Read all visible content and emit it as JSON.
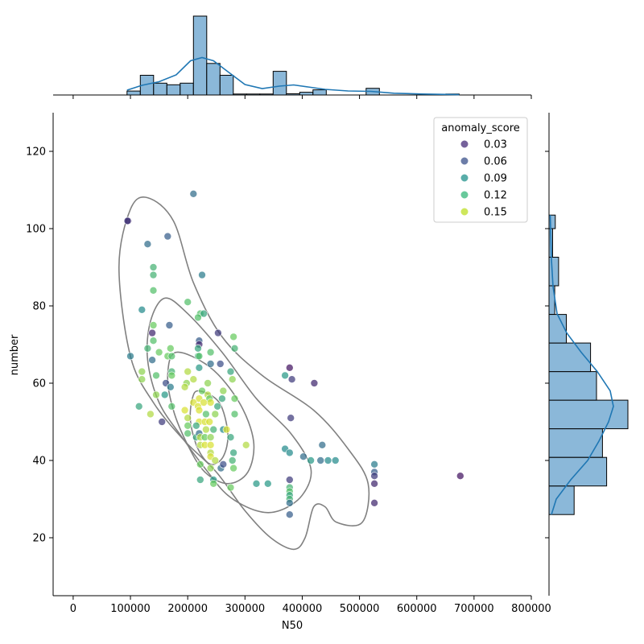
{
  "chart_data": {
    "type": "scatter",
    "subtype": "jointplot",
    "xlabel": "N50",
    "ylabel": "number",
    "xlim": [
      -35000,
      800000
    ],
    "ylim": [
      5,
      130
    ],
    "x_ticks": [
      0,
      100000,
      200000,
      300000,
      400000,
      500000,
      600000,
      700000,
      800000
    ],
    "x_tick_labels": [
      "0",
      "100000",
      "200000",
      "300000",
      "400000",
      "500000",
      "600000",
      "700000",
      "800000"
    ],
    "y_ticks": [
      20,
      40,
      60,
      80,
      100,
      120
    ],
    "y_tick_labels": [
      "20",
      "40",
      "60",
      "80",
      "100",
      "120"
    ],
    "grid": false,
    "legend": {
      "title": "anomaly_score",
      "placement": "top-right",
      "entries": [
        {
          "label": "0.03",
          "color": "#472c7a"
        },
        {
          "label": "0.06",
          "color": "#3b528b"
        },
        {
          "label": "0.09",
          "color": "#21918c"
        },
        {
          "label": "0.12",
          "color": "#35b779"
        },
        {
          "label": "0.15",
          "color": "#bddf26"
        }
      ]
    },
    "colormap": "viridis",
    "color_range": [
      0.0,
      0.17
    ],
    "kde_contour_color": "#808080",
    "hist_color": "#7eb0d5",
    "kde_line_color": "#1f77b4",
    "points": [
      [
        96000,
        102,
        0.01
      ],
      [
        95000,
        102,
        0.03
      ],
      [
        210000,
        109,
        0.06
      ],
      [
        130000,
        96,
        0.06
      ],
      [
        165000,
        98,
        0.05
      ],
      [
        225000,
        88,
        0.07
      ],
      [
        140000,
        90,
        0.11
      ],
      [
        140000,
        88,
        0.11
      ],
      [
        140000,
        84,
        0.12
      ],
      [
        120000,
        79,
        0.08
      ],
      [
        200000,
        81,
        0.12
      ],
      [
        222000,
        78,
        0.12
      ],
      [
        228000,
        78,
        0.1
      ],
      [
        218000,
        77,
        0.12
      ],
      [
        140000,
        75,
        0.13
      ],
      [
        168000,
        75,
        0.05
      ],
      [
        138000,
        73,
        0.02
      ],
      [
        253000,
        73,
        0.03
      ],
      [
        140000,
        71,
        0.12
      ],
      [
        220000,
        71,
        0.05
      ],
      [
        220000,
        70,
        0.02
      ],
      [
        280000,
        72,
        0.13
      ],
      [
        130000,
        69,
        0.11
      ],
      [
        150000,
        68,
        0.13
      ],
      [
        170000,
        69,
        0.13
      ],
      [
        218000,
        69,
        0.1
      ],
      [
        100000,
        67,
        0.07
      ],
      [
        138000,
        66,
        0.06
      ],
      [
        165000,
        67,
        0.13
      ],
      [
        172000,
        67,
        0.12
      ],
      [
        218000,
        67,
        0.1
      ],
      [
        220000,
        67,
        0.12
      ],
      [
        240000,
        68,
        0.12
      ],
      [
        282000,
        69,
        0.11
      ],
      [
        120000,
        63,
        0.14
      ],
      [
        172000,
        63,
        0.11
      ],
      [
        200000,
        63,
        0.15
      ],
      [
        220000,
        64,
        0.09
      ],
      [
        240000,
        65,
        0.06
      ],
      [
        257000,
        65,
        0.04
      ],
      [
        275000,
        63,
        0.1
      ],
      [
        120000,
        61,
        0.14
      ],
      [
        145000,
        62,
        0.12
      ],
      [
        172000,
        62,
        0.13
      ],
      [
        162000,
        60,
        0.04
      ],
      [
        198000,
        60,
        0.14
      ],
      [
        210000,
        61,
        0.15
      ],
      [
        235000,
        60,
        0.14
      ],
      [
        278000,
        61,
        0.14
      ],
      [
        378000,
        64,
        0.01
      ],
      [
        370000,
        62,
        0.09
      ],
      [
        382000,
        61,
        0.03
      ],
      [
        421000,
        60,
        0.02
      ],
      [
        115000,
        54,
        0.1
      ],
      [
        145000,
        57,
        0.14
      ],
      [
        160000,
        57,
        0.09
      ],
      [
        170000,
        59,
        0.07
      ],
      [
        172000,
        54,
        0.12
      ],
      [
        195000,
        59,
        0.15
      ],
      [
        220000,
        56,
        0.16
      ],
      [
        225000,
        58,
        0.13
      ],
      [
        235000,
        57,
        0.15
      ],
      [
        238000,
        56,
        0.13
      ],
      [
        262000,
        58,
        0.14
      ],
      [
        260000,
        56,
        0.1
      ],
      [
        282000,
        56,
        0.13
      ],
      [
        210000,
        55,
        0.16
      ],
      [
        218000,
        54,
        0.16
      ],
      [
        228000,
        55,
        0.16
      ],
      [
        240000,
        55,
        0.16
      ],
      [
        252000,
        54,
        0.1
      ],
      [
        195000,
        53,
        0.16
      ],
      [
        220000,
        53,
        0.16
      ],
      [
        232000,
        52,
        0.12
      ],
      [
        248000,
        52,
        0.14
      ],
      [
        282000,
        52,
        0.12
      ],
      [
        135000,
        52,
        0.15
      ],
      [
        155000,
        50,
        0.03
      ],
      [
        200000,
        51,
        0.15
      ],
      [
        220000,
        50,
        0.16
      ],
      [
        230000,
        50,
        0.16
      ],
      [
        238000,
        50,
        0.16
      ],
      [
        380000,
        51,
        0.03
      ],
      [
        200000,
        49,
        0.13
      ],
      [
        215000,
        49,
        0.1
      ],
      [
        232000,
        48,
        0.15
      ],
      [
        245000,
        48,
        0.11
      ],
      [
        262000,
        48,
        0.08
      ],
      [
        268000,
        48,
        0.16
      ],
      [
        200000,
        47,
        0.12
      ],
      [
        215000,
        46,
        0.1
      ],
      [
        220000,
        47,
        0.06
      ],
      [
        222000,
        46,
        0.15
      ],
      [
        230000,
        46,
        0.13
      ],
      [
        240000,
        46,
        0.14
      ],
      [
        275000,
        46,
        0.1
      ],
      [
        222000,
        44,
        0.15
      ],
      [
        230000,
        44,
        0.16
      ],
      [
        240000,
        44,
        0.16
      ],
      [
        302000,
        44,
        0.15
      ],
      [
        370000,
        43,
        0.08
      ],
      [
        378000,
        42,
        0.08
      ],
      [
        435000,
        44,
        0.06
      ],
      [
        240000,
        42,
        0.15
      ],
      [
        240000,
        41,
        0.16
      ],
      [
        248000,
        40,
        0.15
      ],
      [
        280000,
        42,
        0.1
      ],
      [
        278000,
        40,
        0.11
      ],
      [
        402000,
        41,
        0.06
      ],
      [
        415000,
        40,
        0.09
      ],
      [
        432000,
        40,
        0.06
      ],
      [
        445000,
        40,
        0.08
      ],
      [
        458000,
        40,
        0.08
      ],
      [
        222000,
        39,
        0.13
      ],
      [
        258000,
        38,
        0.06
      ],
      [
        262000,
        39,
        0.04
      ],
      [
        240000,
        38,
        0.14
      ],
      [
        280000,
        38,
        0.13
      ],
      [
        526000,
        39,
        0.07
      ],
      [
        526000,
        37,
        0.05
      ],
      [
        526000,
        36,
        0.03
      ],
      [
        676000,
        36,
        0.01
      ],
      [
        378000,
        35,
        0.03
      ],
      [
        526000,
        34,
        0.02
      ],
      [
        222000,
        35,
        0.1
      ],
      [
        245000,
        35,
        0.09
      ],
      [
        245000,
        34,
        0.13
      ],
      [
        275000,
        33,
        0.13
      ],
      [
        320000,
        34,
        0.09
      ],
      [
        340000,
        34,
        0.09
      ],
      [
        378000,
        33,
        0.11
      ],
      [
        378000,
        32,
        0.12
      ],
      [
        378000,
        31,
        0.1
      ],
      [
        378000,
        30,
        0.11
      ],
      [
        378000,
        29,
        0.06
      ],
      [
        526000,
        29,
        0.02
      ],
      [
        378000,
        26,
        0.05
      ]
    ],
    "x_histogram": {
      "bin_edges": [
        94000,
        117200,
        140400,
        163600,
        186800,
        210000,
        233200,
        256400,
        279600,
        302800,
        326000,
        349200,
        372400,
        395600,
        418800,
        442000,
        465200,
        488400,
        511600,
        534800,
        558000,
        581200,
        604400,
        627600,
        650800,
        674000
      ],
      "counts": [
        1,
        5,
        3,
        2.6,
        3,
        20,
        8,
        5,
        0.25,
        0.25,
        0.25,
        6,
        0.3,
        0.7,
        1.3,
        0,
        0,
        0,
        1.7,
        0,
        0,
        0,
        0,
        0,
        0.25
      ]
    },
    "y_histogram": {
      "bin_edges": [
        26,
        33.4,
        40.8,
        48.2,
        55.6,
        63,
        70.4,
        77.8,
        85.2,
        92.6,
        100,
        103.5
      ],
      "counts": [
        8.4,
        19.3,
        17.9,
        26.4,
        15.9,
        13.9,
        5.8,
        1.9,
        3.2,
        1.2,
        2.1
      ]
    }
  }
}
